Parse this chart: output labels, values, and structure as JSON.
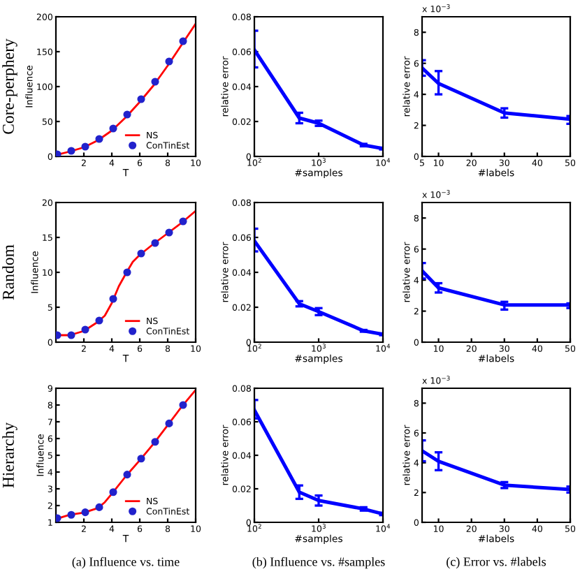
{
  "chart_data": [
    {
      "type": "line",
      "xlabel": "T",
      "ylabel": "Influence",
      "xlim": [
        0,
        10
      ],
      "xticks": [
        2,
        4,
        6,
        8,
        10
      ],
      "ylim": [
        0,
        200
      ],
      "yticks": [
        0,
        50,
        100,
        150,
        200
      ],
      "legend": "bottom right",
      "annotations": [
        "Core-perphery"
      ],
      "series": [
        {
          "name": "NS",
          "type": "line",
          "color": "#ff0000",
          "marker": "none",
          "x": [
            0,
            1,
            2,
            3,
            4,
            5,
            6,
            7,
            8,
            9,
            10
          ],
          "values": [
            2,
            7,
            13,
            23,
            37,
            56,
            78,
            102,
            130,
            160,
            190
          ]
        },
        {
          "name": "ConTinEst",
          "type": "scatter",
          "color": "#2222cc",
          "marker": "circle",
          "x": [
            0.1,
            1.1,
            2.1,
            3.1,
            4.1,
            5.1,
            6.1,
            7.1,
            8.1,
            9.1
          ],
          "values": [
            3,
            8,
            14,
            25,
            40,
            60,
            82,
            107,
            136,
            165
          ]
        }
      ]
    },
    {
      "type": "line",
      "xlabel": "#samples",
      "ylabel": "relative error",
      "log": "x",
      "xlim": [
        100,
        10000
      ],
      "xticks": [
        {
          "value": 100,
          "label": "10$^{2}$"
        },
        {
          "value": 1000,
          "label": "10$^{3}$"
        },
        {
          "value": 10000,
          "label": "10$^{4}$"
        }
      ],
      "ylim": [
        0,
        0.08
      ],
      "yticks": [
        0,
        0.02,
        0.04,
        0.06,
        0.08
      ],
      "series": [
        {
          "color": "#0000ff",
          "x": [
            100,
            500,
            1000,
            5000,
            10000
          ],
          "values": [
            0.061,
            0.022,
            0.019,
            0.0065,
            0.0045
          ],
          "errors": [
            [
              0.051,
              0.072
            ],
            [
              0.019,
              0.025
            ],
            [
              0.0175,
              0.0205
            ],
            [
              0.0058,
              0.0072
            ],
            [
              0.004,
              0.005
            ]
          ]
        }
      ]
    },
    {
      "type": "line",
      "xlabel": "#labels",
      "ylabel": "relative error",
      "xlim": [
        5,
        50
      ],
      "xticks": [
        5,
        10,
        20,
        30,
        40,
        50
      ],
      "ylim": [
        0,
        9
      ],
      "yticks": [
        0,
        2,
        4,
        6,
        8
      ],
      "annotations": [
        "x 10$^{−3}$"
      ],
      "series": [
        {
          "color": "#0000ff",
          "x": [
            5,
            10,
            30,
            50
          ],
          "values": [
            5.7,
            4.7,
            2.8,
            2.4
          ],
          "errors": [
            [
              5.2,
              6.2
            ],
            [
              4.0,
              5.5
            ],
            [
              2.5,
              3.1
            ],
            [
              2.1,
              2.6
            ]
          ]
        }
      ]
    },
    {
      "type": "line",
      "xlabel": "T",
      "ylabel": "Influence",
      "xlim": [
        0,
        10
      ],
      "xticks": [
        2,
        4,
        6,
        8,
        10
      ],
      "ylim": [
        0,
        20
      ],
      "yticks": [
        0,
        5,
        10,
        15,
        20
      ],
      "legend": "bottom right",
      "annotations": [
        "Random"
      ],
      "series": [
        {
          "name": "NS",
          "type": "line",
          "color": "#ff0000",
          "marker": "none",
          "x": [
            0,
            1,
            2,
            3,
            3.5,
            4,
            4.5,
            5,
            5.5,
            6,
            7,
            8,
            9,
            10
          ],
          "values": [
            1,
            1,
            1.6,
            2.9,
            3.8,
            5.6,
            8,
            9.8,
            11.5,
            12.5,
            14.1,
            15.6,
            17.1,
            18.8
          ]
        },
        {
          "name": "ConTinEst",
          "type": "scatter",
          "color": "#2222cc",
          "marker": "circle",
          "x": [
            0.1,
            1.1,
            2.1,
            3.1,
            4.1,
            5.1,
            6.1,
            7.1,
            8.1,
            9.1
          ],
          "values": [
            1,
            1,
            1.8,
            3.1,
            6.2,
            10,
            12.7,
            14.2,
            15.7,
            17.3
          ]
        }
      ]
    },
    {
      "type": "line",
      "xlabel": "#samples",
      "ylabel": "relative error",
      "log": "x",
      "xlim": [
        100,
        10000
      ],
      "xticks": [
        {
          "value": 100,
          "label": "10$^{2}$"
        },
        {
          "value": 1000,
          "label": "10$^{3}$"
        },
        {
          "value": 10000,
          "label": "10$^{4}$"
        }
      ],
      "ylim": [
        0,
        0.08
      ],
      "yticks": [
        0,
        0.02,
        0.04,
        0.06,
        0.08
      ],
      "series": [
        {
          "color": "#0000ff",
          "x": [
            100,
            500,
            1000,
            5000,
            10000
          ],
          "values": [
            0.058,
            0.022,
            0.0175,
            0.0065,
            0.0045
          ],
          "errors": [
            [
              0.052,
              0.065
            ],
            [
              0.0205,
              0.0235
            ],
            [
              0.0155,
              0.0195
            ],
            [
              0.006,
              0.007
            ],
            [
              0.004,
              0.005
            ]
          ]
        }
      ]
    },
    {
      "type": "line",
      "xlabel": "#labels",
      "ylabel": "relative error",
      "xlim": [
        5,
        50
      ],
      "xticks": [
        10,
        20,
        30,
        40,
        50
      ],
      "ylim": [
        0,
        9
      ],
      "yticks": [
        0,
        2,
        4,
        6,
        8
      ],
      "annotations": [
        "x 10$^{−3}$"
      ],
      "series": [
        {
          "color": "#0000ff",
          "x": [
            5,
            10,
            30,
            50
          ],
          "values": [
            4.6,
            3.5,
            2.4,
            2.4
          ],
          "errors": [
            [
              4.1,
              5.1
            ],
            [
              3.2,
              3.8
            ],
            [
              2.1,
              2.6
            ],
            [
              2.2,
              2.5
            ]
          ]
        }
      ]
    },
    {
      "type": "line",
      "xlabel": "T",
      "ylabel": "Influence",
      "xlim": [
        0,
        10
      ],
      "xticks": [
        2,
        4,
        6,
        8,
        10
      ],
      "ylim": [
        1,
        9
      ],
      "yticks": [
        1,
        2,
        3,
        4,
        5,
        6,
        7,
        8,
        9
      ],
      "legend": "bottom right",
      "annotations": [
        "Hierarchy",
        "(a) Influence vs. time"
      ],
      "series": [
        {
          "name": "NS",
          "type": "line",
          "color": "#ff0000",
          "marker": "none",
          "x": [
            0,
            1,
            2,
            3,
            3.5,
            4,
            5,
            6,
            7,
            8,
            9,
            10
          ],
          "values": [
            1.2,
            1.45,
            1.58,
            1.85,
            2.2,
            2.7,
            3.75,
            4.7,
            5.7,
            6.8,
            7.9,
            8.9
          ]
        },
        {
          "name": "ConTinEst",
          "type": "scatter",
          "color": "#2222cc",
          "marker": "circle",
          "x": [
            0.1,
            1.1,
            2.1,
            3.1,
            4.1,
            5.1,
            6.1,
            7.1,
            8.1,
            9.1
          ],
          "values": [
            1.25,
            1.45,
            1.6,
            1.9,
            2.8,
            3.85,
            4.8,
            5.8,
            6.9,
            8.0
          ]
        }
      ]
    },
    {
      "type": "line",
      "xlabel": "#samples",
      "ylabel": "relative error",
      "log": "x",
      "xlim": [
        100,
        10000
      ],
      "xticks": [
        {
          "value": 100,
          "label": "10$^{2}$"
        },
        {
          "value": 1000,
          "label": "10$^{3}$"
        },
        {
          "value": 10000,
          "label": "10$^{4}$"
        }
      ],
      "ylim": [
        0,
        0.08
      ],
      "yticks": [
        0,
        0.02,
        0.04,
        0.06,
        0.08
      ],
      "annotations": [
        "(b) Influence vs. #samples"
      ],
      "series": [
        {
          "color": "#0000ff",
          "x": [
            100,
            500,
            1000,
            5000,
            10000
          ],
          "values": [
            0.067,
            0.018,
            0.013,
            0.008,
            0.005
          ],
          "errors": [
            [
              0.062,
              0.073
            ],
            [
              0.014,
              0.022
            ],
            [
              0.01,
              0.016
            ],
            [
              0.007,
              0.009
            ],
            [
              0.0043,
              0.0057
            ]
          ]
        }
      ]
    },
    {
      "type": "line",
      "xlabel": "#labels",
      "ylabel": "relative error",
      "xlim": [
        5,
        50
      ],
      "xticks": [
        10,
        20,
        30,
        40,
        50
      ],
      "ylim": [
        0,
        9
      ],
      "yticks": [
        0,
        2,
        4,
        6,
        8
      ],
      "annotations": [
        "x 10$^{−3}$",
        "(c) Error vs. #labels"
      ],
      "series": [
        {
          "color": "#0000ff",
          "x": [
            5,
            10,
            30,
            50
          ],
          "values": [
            4.8,
            4.1,
            2.5,
            2.2
          ],
          "errors": [
            [
              4.1,
              5.5
            ],
            [
              3.5,
              4.7
            ],
            [
              2.3,
              2.7
            ],
            [
              2.0,
              2.4
            ]
          ]
        }
      ]
    }
  ]
}
